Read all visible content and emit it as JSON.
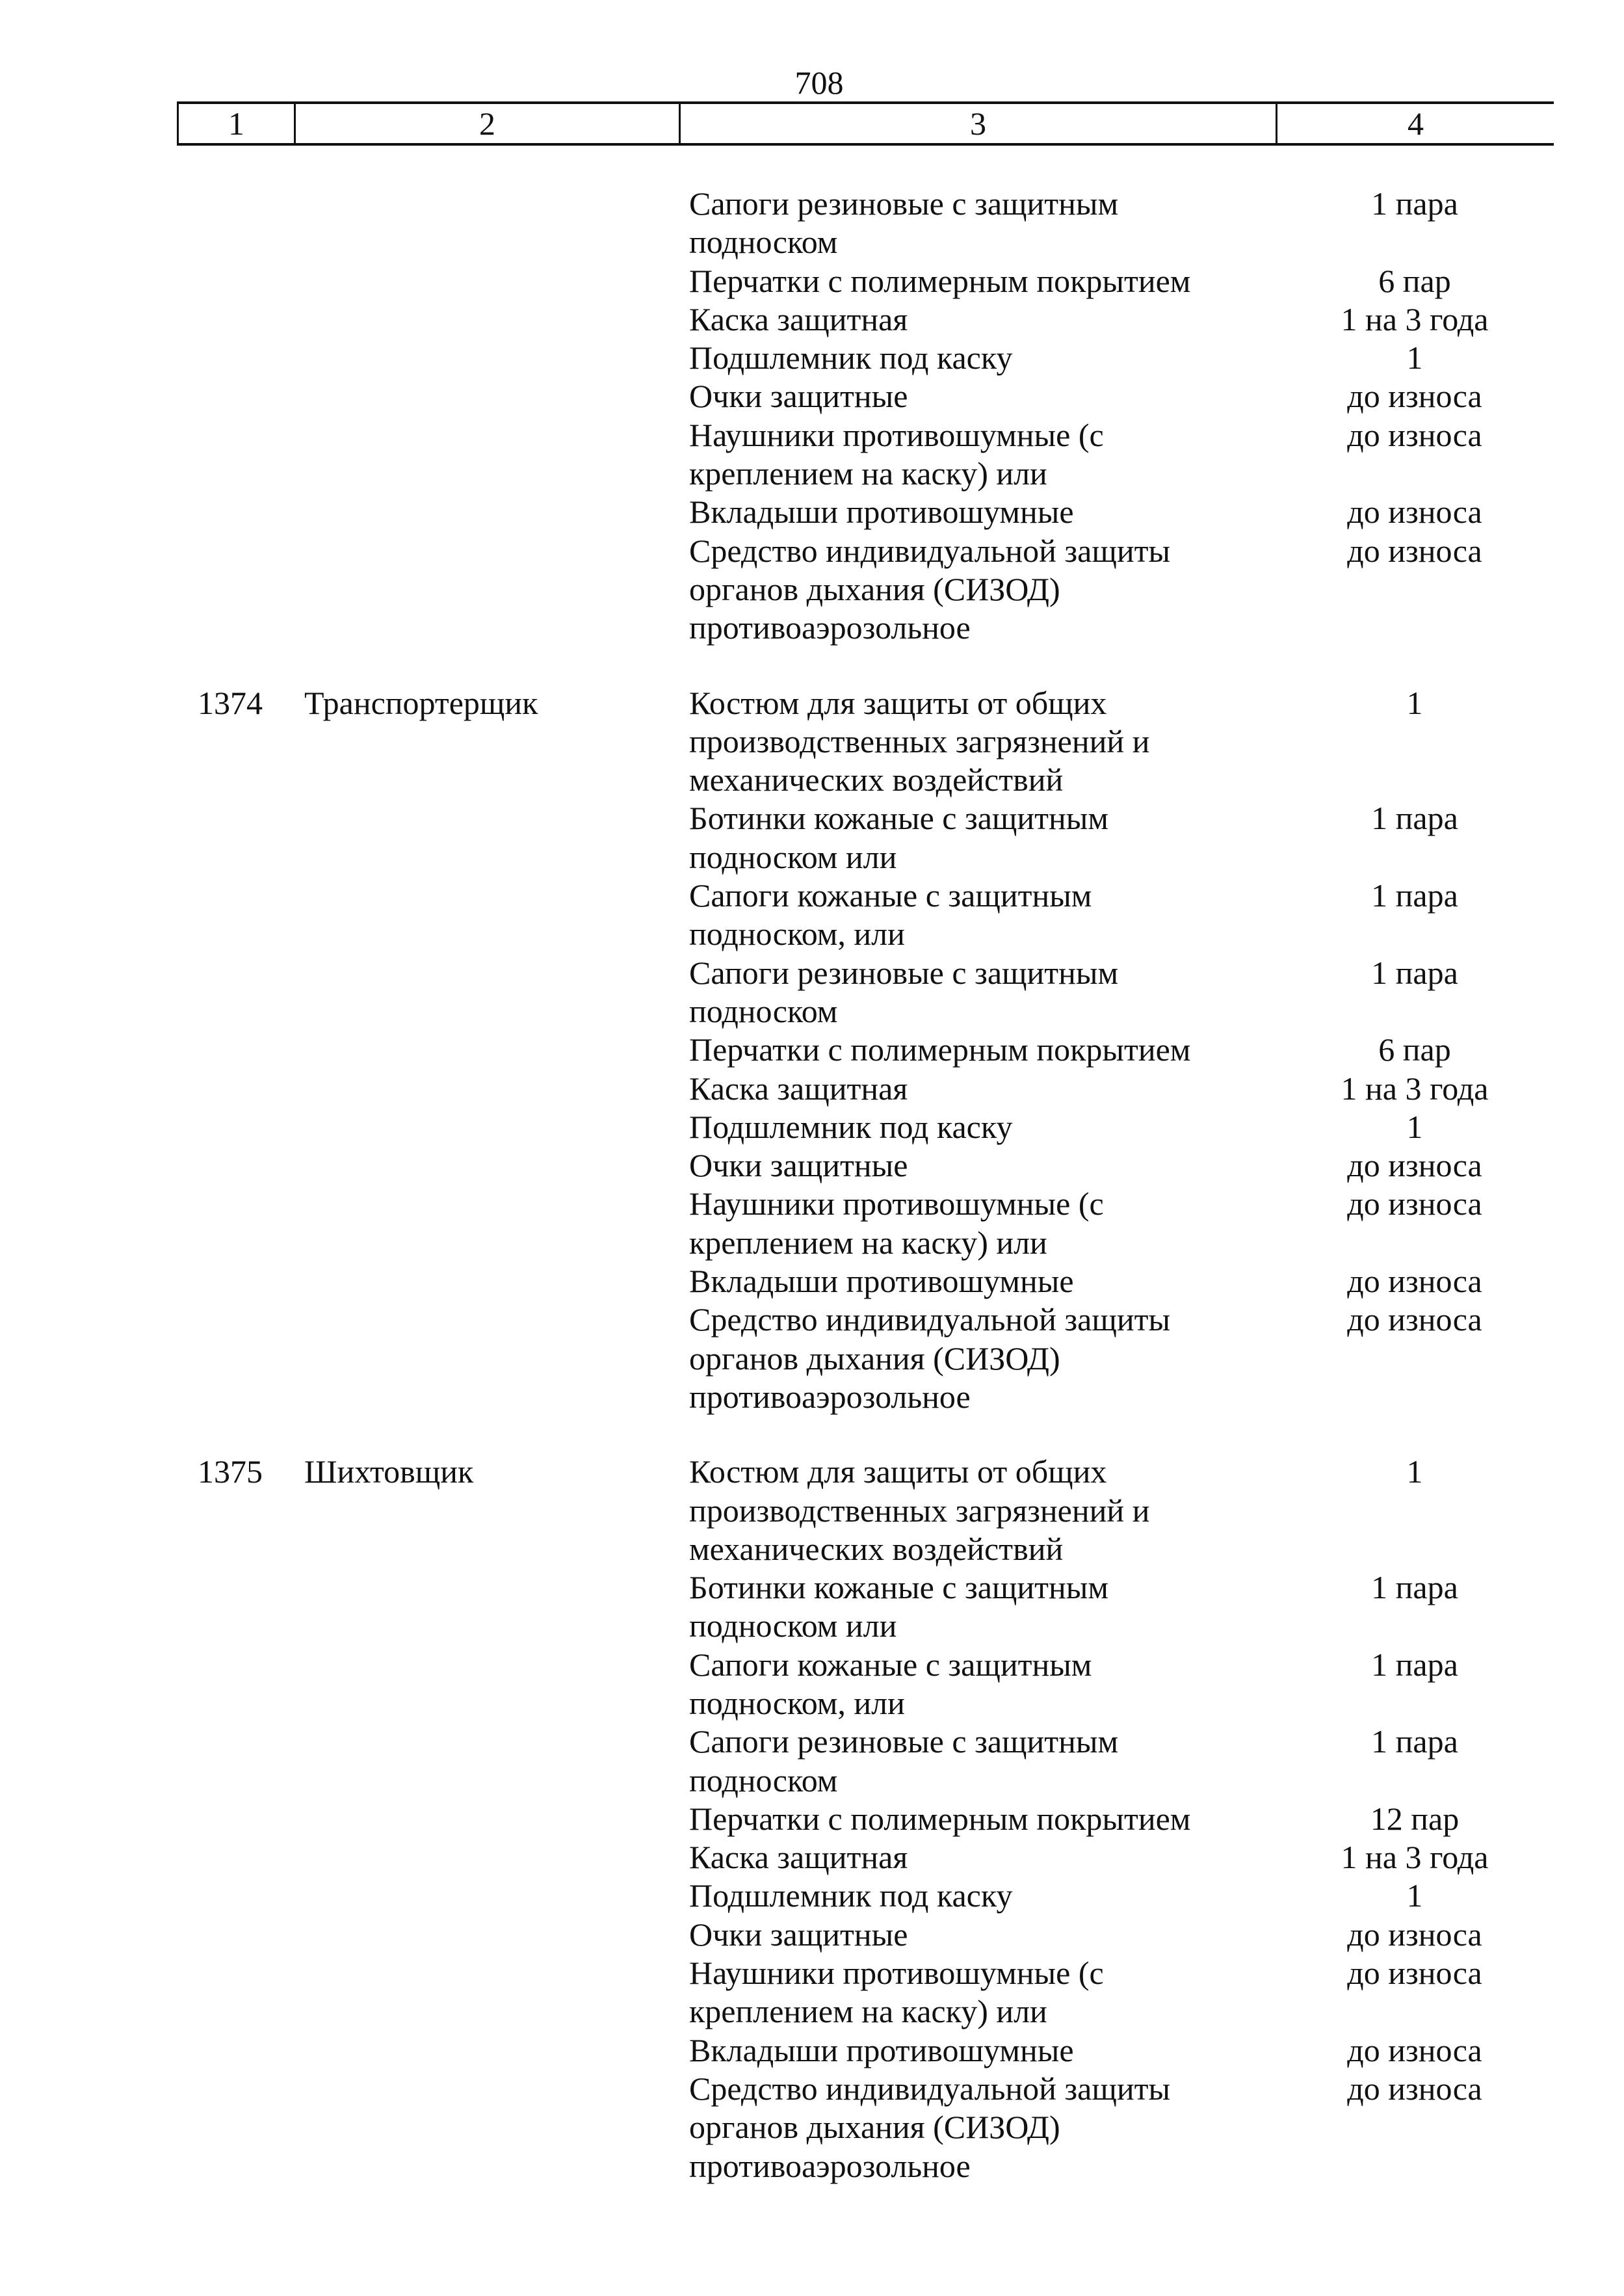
{
  "page_number": "708",
  "header": [
    "1",
    "2",
    "3",
    "4"
  ],
  "groups": [
    {
      "number": "",
      "name": "",
      "items": [
        {
          "lines": [
            "Сапоги резиновые с защитным",
            "подноском"
          ],
          "qty": "1 пара"
        },
        {
          "lines": [
            "Перчатки с полимерным покрытием"
          ],
          "qty": "6 пар"
        },
        {
          "lines": [
            "Каска защитная"
          ],
          "qty": "1 на 3 года"
        },
        {
          "lines": [
            "Подшлемник под каску"
          ],
          "qty": "1"
        },
        {
          "lines": [
            "Очки защитные"
          ],
          "qty": "до износа"
        },
        {
          "lines": [
            "Наушники противошумные (с",
            "креплением на каску) или"
          ],
          "qty": "до износа"
        },
        {
          "lines": [
            "Вкладыши противошумные"
          ],
          "qty": "до износа"
        },
        {
          "lines": [
            "Средство индивидуальной защиты",
            "органов дыхания (СИЗОД)",
            "противоаэрозольное"
          ],
          "qty": "до износа"
        }
      ]
    },
    {
      "number": "1374",
      "name": "Транспортерщик",
      "items": [
        {
          "lines": [
            "Костюм для защиты от общих",
            "производственных загрязнений и",
            "механических воздействий"
          ],
          "qty": "1"
        },
        {
          "lines": [
            "Ботинки кожаные с защитным",
            "подноском или"
          ],
          "qty": "1 пара"
        },
        {
          "lines": [
            "Сапоги кожаные с защитным",
            "подноском, или"
          ],
          "qty": "1 пара"
        },
        {
          "lines": [
            "Сапоги резиновые с защитным",
            "подноском"
          ],
          "qty": "1 пара"
        },
        {
          "lines": [
            "Перчатки с полимерным покрытием"
          ],
          "qty": "6 пар"
        },
        {
          "lines": [
            "Каска защитная"
          ],
          "qty": "1 на 3 года"
        },
        {
          "lines": [
            "Подшлемник под каску"
          ],
          "qty": "1"
        },
        {
          "lines": [
            "Очки защитные"
          ],
          "qty": "до износа"
        },
        {
          "lines": [
            "Наушники противошумные (с",
            "креплением на каску) или"
          ],
          "qty": "до износа"
        },
        {
          "lines": [
            "Вкладыши противошумные"
          ],
          "qty": "до износа"
        },
        {
          "lines": [
            "Средство индивидуальной защиты",
            "органов дыхания (СИЗОД)",
            "противоаэрозольное"
          ],
          "qty": "до износа"
        }
      ]
    },
    {
      "number": "1375",
      "name": "Шихтовщик",
      "items": [
        {
          "lines": [
            "Костюм для защиты от общих",
            "производственных загрязнений и",
            "механических воздействий"
          ],
          "qty": "1"
        },
        {
          "lines": [
            "Ботинки кожаные с защитным",
            "подноском или"
          ],
          "qty": "1 пара"
        },
        {
          "lines": [
            "Сапоги кожаные с защитным",
            "подноском, или"
          ],
          "qty": "1 пара"
        },
        {
          "lines": [
            "Сапоги резиновые с защитным",
            "подноском"
          ],
          "qty": "1 пара"
        },
        {
          "lines": [
            "Перчатки с полимерным покрытием"
          ],
          "qty": "12 пар"
        },
        {
          "lines": [
            "Каска защитная"
          ],
          "qty": "1 на 3 года"
        },
        {
          "lines": [
            "Подшлемник под каску"
          ],
          "qty": "1"
        },
        {
          "lines": [
            "Очки защитные"
          ],
          "qty": "до износа"
        },
        {
          "lines": [
            "Наушники противошумные (с",
            "креплением на каску) или"
          ],
          "qty": "до износа"
        },
        {
          "lines": [
            "Вкладыши противошумные"
          ],
          "qty": "до износа"
        },
        {
          "lines": [
            "Средство индивидуальной защиты",
            "органов дыхания (СИЗОД)",
            "противоаэрозольное"
          ],
          "qty": "до износа"
        }
      ]
    }
  ]
}
